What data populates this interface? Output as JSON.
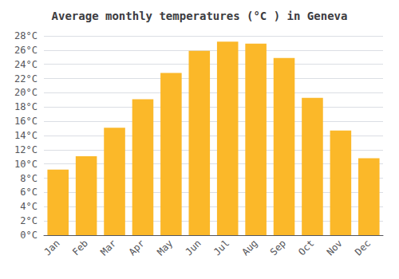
{
  "chart_data": {
    "type": "bar",
    "title": "Average monthly temperatures (°C ) in Geneva",
    "categories": [
      "Jan",
      "Feb",
      "Mar",
      "Apr",
      "May",
      "Jun",
      "Jul",
      "Aug",
      "Sep",
      "Oct",
      "Nov",
      "Dec"
    ],
    "values": [
      9.2,
      11.1,
      15.1,
      19.1,
      22.8,
      25.9,
      27.2,
      26.9,
      24.9,
      19.3,
      14.7,
      10.8
    ],
    "color": "#FBB829",
    "ylim": [
      0,
      28
    ],
    "yticks": [
      {
        "value": 0,
        "label": "0°C"
      },
      {
        "value": 2,
        "label": "2°C"
      },
      {
        "value": 4,
        "label": "4°C"
      },
      {
        "value": 6,
        "label": "6°C"
      },
      {
        "value": 8,
        "label": "8°C"
      },
      {
        "value": 10,
        "label": "10°C"
      },
      {
        "value": 12,
        "label": "12°C"
      },
      {
        "value": 14,
        "label": "14°C"
      },
      {
        "value": 16,
        "label": "16°C"
      },
      {
        "value": 18,
        "label": "18°C"
      },
      {
        "value": 20,
        "label": "20°C"
      },
      {
        "value": 22,
        "label": "22°C"
      },
      {
        "value": 24,
        "label": "24°C"
      },
      {
        "value": 26,
        "label": "26°C"
      },
      {
        "value": 28,
        "label": "28°C"
      }
    ],
    "grid": true
  }
}
